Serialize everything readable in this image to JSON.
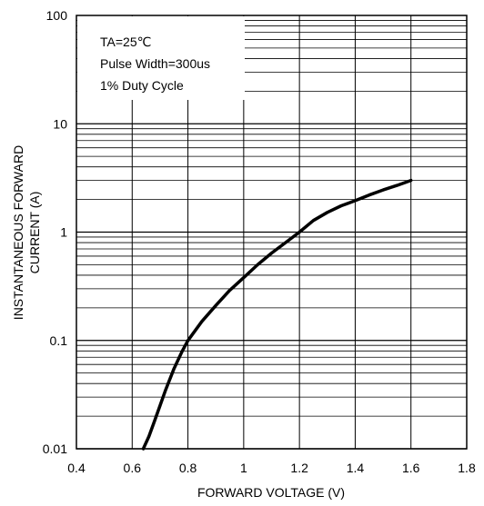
{
  "chart_data": {
    "type": "line",
    "xlabel": "FORWARD VOLTAGE (V)",
    "ylabel_lines": [
      "INSTANTANEOUS FORWARD",
      "CURRENT (A)"
    ],
    "x_scale": "linear",
    "y_scale": "log",
    "xlim": [
      0.4,
      1.8
    ],
    "ylim": [
      0.01,
      100
    ],
    "x_ticks": [
      0.4,
      0.6,
      0.8,
      1.0,
      1.2,
      1.4,
      1.6,
      1.8
    ],
    "x_tick_labels": [
      "0.4",
      "0.6",
      "0.8",
      "1",
      "1.2",
      "1.4",
      "1.6",
      "1.8"
    ],
    "y_ticks": [
      0.01,
      0.1,
      1,
      10,
      100
    ],
    "y_tick_labels": [
      "0.01",
      "0.1",
      "1",
      "10",
      "100"
    ],
    "grid": true,
    "annotations": [
      "TA=25℃",
      "Pulse Width=300us",
      "1% Duty Cycle"
    ],
    "annotation_placement": "top-left",
    "series": [
      {
        "color": "#000000",
        "x": [
          0.64,
          0.66,
          0.68,
          0.7,
          0.72,
          0.75,
          0.78,
          0.8,
          0.85,
          0.9,
          0.95,
          1.0,
          1.05,
          1.1,
          1.15,
          1.2,
          1.25,
          1.3,
          1.35,
          1.4,
          1.45,
          1.5,
          1.55,
          1.6
        ],
        "y": [
          0.01,
          0.013,
          0.018,
          0.025,
          0.035,
          0.055,
          0.08,
          0.1,
          0.15,
          0.21,
          0.29,
          0.38,
          0.5,
          0.64,
          0.8,
          1.0,
          1.28,
          1.52,
          1.75,
          1.95,
          2.2,
          2.45,
          2.7,
          3.0
        ]
      }
    ]
  }
}
